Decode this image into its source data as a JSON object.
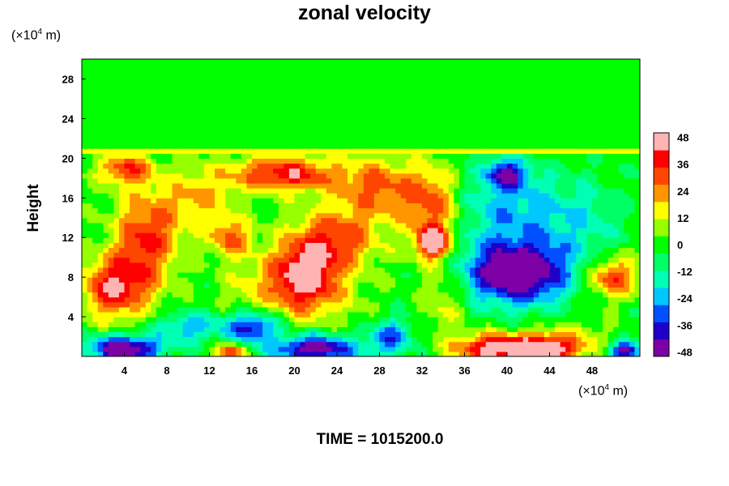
{
  "chart_data": {
    "type": "heatmap",
    "title": "zonal velocity",
    "ylabel": "Height",
    "xlabel": "",
    "x_unit": {
      "prefix": "(×10",
      "exp": "4",
      "suffix": " m)"
    },
    "y_unit": {
      "prefix": "(×10",
      "exp": "4",
      "suffix": " m)"
    },
    "xlim": [
      0,
      52.5
    ],
    "ylim": [
      0,
      30
    ],
    "x_ticks": [
      4,
      8,
      12,
      16,
      20,
      24,
      28,
      32,
      36,
      40,
      44,
      48
    ],
    "y_ticks": [
      4,
      8,
      12,
      16,
      20,
      24,
      28
    ],
    "colorbar": {
      "min": -50,
      "max": 50,
      "ticks": [
        48,
        36,
        24,
        12,
        0,
        -12,
        -24,
        -36,
        -48
      ],
      "colors": [
        "#7d00a5",
        "#1e00c8",
        "#0050ff",
        "#00c8ff",
        "#00ffb4",
        "#00ff64",
        "#00ff00",
        "#96ff00",
        "#ffff00",
        "#ff9600",
        "#ff4600",
        "#ff0000",
        "#ffb4b4"
      ]
    },
    "features": [
      {
        "x": 3,
        "y": 7,
        "v": 40,
        "sx": 3,
        "sy": 3
      },
      {
        "x": 6,
        "y": 12,
        "v": 35,
        "sx": 3,
        "sy": 5
      },
      {
        "x": 4,
        "y": 19,
        "v": 32,
        "sx": 2.5,
        "sy": 1.5
      },
      {
        "x": 11,
        "y": 16,
        "v": 20,
        "sx": 3,
        "sy": 3
      },
      {
        "x": 19,
        "y": 18.5,
        "v": 40,
        "sx": 5,
        "sy": 1.8
      },
      {
        "x": 14,
        "y": 12,
        "v": 28,
        "sx": 2,
        "sy": 2
      },
      {
        "x": 21,
        "y": 8,
        "v": 52,
        "sx": 3.2,
        "sy": 3.5
      },
      {
        "x": 24,
        "y": 12,
        "v": 30,
        "sx": 4,
        "sy": 3
      },
      {
        "x": 28,
        "y": 17,
        "v": 28,
        "sx": 4,
        "sy": 3
      },
      {
        "x": 33,
        "y": 15,
        "v": 30,
        "sx": 2.5,
        "sy": 4
      },
      {
        "x": 33,
        "y": 11.5,
        "v": 45,
        "sx": 1.5,
        "sy": 1.5
      },
      {
        "x": 34,
        "y": 6,
        "v": 15,
        "sx": 2,
        "sy": 4
      },
      {
        "x": 41,
        "y": 8.5,
        "v": -58,
        "sx": 5,
        "sy": 3.2
      },
      {
        "x": 40,
        "y": 15,
        "v": -22,
        "sx": 5,
        "sy": 4
      },
      {
        "x": 40,
        "y": 18.5,
        "v": -38,
        "sx": 2,
        "sy": 1.5
      },
      {
        "x": 47,
        "y": 14,
        "v": -15,
        "sx": 4,
        "sy": 4
      },
      {
        "x": 50,
        "y": 8,
        "v": 35,
        "sx": 2.5,
        "sy": 2
      },
      {
        "x": 38,
        "y": 0.8,
        "v": 40,
        "sx": 3,
        "sy": 1.5
      },
      {
        "x": 43,
        "y": 0.8,
        "v": 58,
        "sx": 3.5,
        "sy": 1.5
      },
      {
        "x": 4,
        "y": 0.8,
        "v": -55,
        "sx": 3.5,
        "sy": 1.3
      },
      {
        "x": 22,
        "y": 0.8,
        "v": -50,
        "sx": 4,
        "sy": 1.4
      },
      {
        "x": 16,
        "y": 3,
        "v": -40,
        "sx": 2.5,
        "sy": 1.5
      },
      {
        "x": 10,
        "y": 3,
        "v": -25,
        "sx": 3,
        "sy": 1.5
      },
      {
        "x": 14,
        "y": 0.5,
        "v": 35,
        "sx": 1.5,
        "sy": 0.8
      },
      {
        "x": 29,
        "y": 2,
        "v": -30,
        "sx": 2,
        "sy": 2
      },
      {
        "x": 51,
        "y": 0.5,
        "v": -45,
        "sx": 1.5,
        "sy": 1
      },
      {
        "x": 47,
        "y": 2,
        "v": 10,
        "sx": 2.5,
        "sy": 2
      },
      {
        "x": 16,
        "y": 7,
        "v": 12,
        "sx": 3,
        "sy": 3
      },
      {
        "x": 26,
        "y": 5,
        "v": 5,
        "sx": 3,
        "sy": 3
      }
    ]
  },
  "footer": "TIME = 1015200.0"
}
